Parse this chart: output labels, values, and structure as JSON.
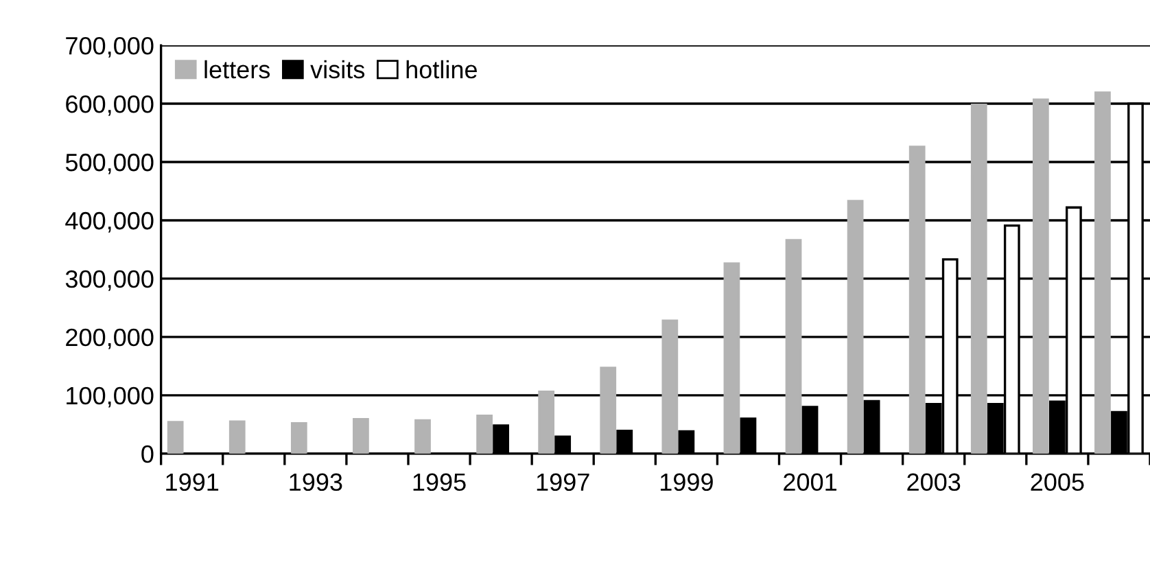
{
  "chart_data": {
    "type": "bar",
    "categories": [
      "1991",
      null,
      "1993",
      null,
      "1995",
      null,
      "1997",
      null,
      "1999",
      null,
      "2001",
      null,
      "2003",
      null,
      "2005",
      null
    ],
    "series": [
      {
        "name": "letters",
        "color": "#b3b3b3",
        "values": [
          54000,
          55000,
          52000,
          59000,
          57000,
          65000,
          106000,
          147000,
          228000,
          326000,
          366000,
          433000,
          526000,
          598000,
          607000,
          619000
        ]
      },
      {
        "name": "visits",
        "color": "#000000",
        "values": [
          null,
          null,
          null,
          null,
          null,
          48000,
          29000,
          39000,
          38000,
          60000,
          80000,
          90000,
          85000,
          85000,
          89000,
          71000
        ]
      },
      {
        "name": "hotline",
        "color": "#ffffff",
        "values": [
          null,
          null,
          null,
          null,
          null,
          null,
          null,
          null,
          null,
          null,
          null,
          null,
          333000,
          391000,
          422000,
          600000
        ]
      }
    ],
    "ylim": [
      0,
      700000
    ],
    "yticks": [
      {
        "value": 0,
        "label": "0"
      },
      {
        "value": 100000,
        "label": "100,000"
      },
      {
        "value": 200000,
        "label": "200,000"
      },
      {
        "value": 300000,
        "label": "300,000"
      },
      {
        "value": 400000,
        "label": "400,000"
      },
      {
        "value": 500000,
        "label": "500,000"
      },
      {
        "value": 600000,
        "label": "600,000"
      },
      {
        "value": 700000,
        "label": "700,000"
      }
    ],
    "grid": "y",
    "legend": "top left"
  }
}
